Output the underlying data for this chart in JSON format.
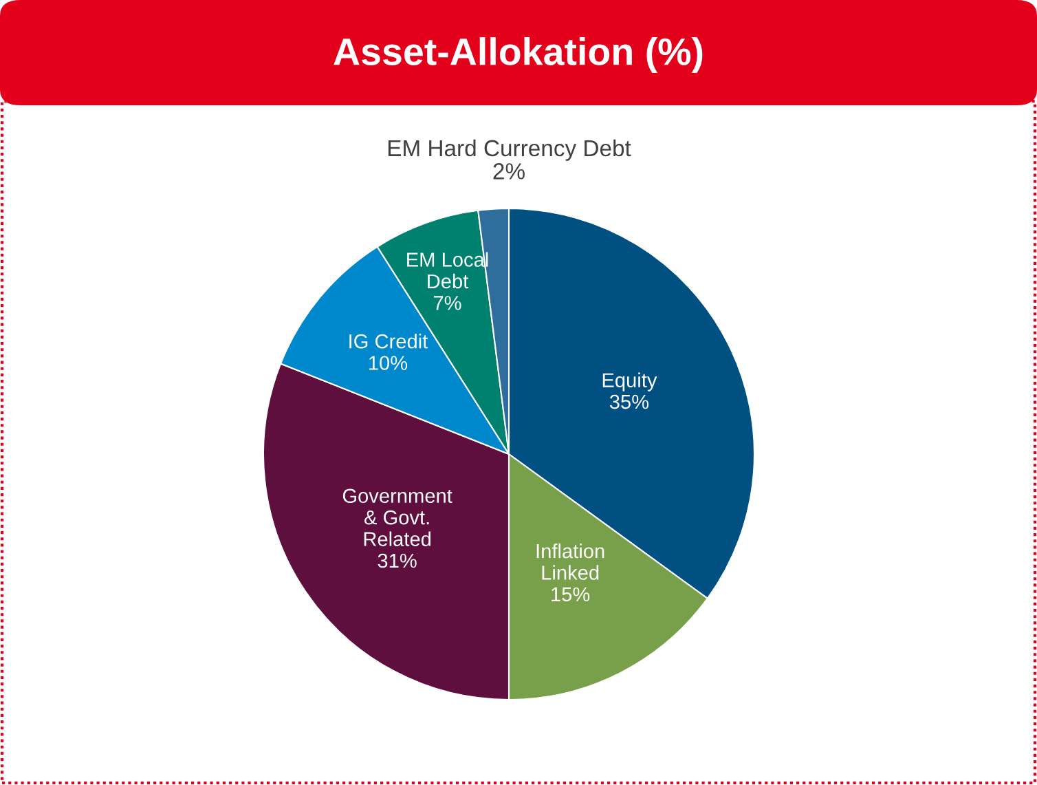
{
  "chart_data": {
    "type": "pie",
    "title": "Asset-Allokation (%)",
    "categories": [
      "Equity",
      "Inflation\nLinked",
      "Government\n& Govt.\nRelated",
      "IG Credit",
      "EM Local\nDebt",
      "EM Hard Currency Debt"
    ],
    "values": [
      35,
      15,
      31,
      10,
      7,
      2
    ],
    "colors": [
      "#005082",
      "#78a04a",
      "#5e0f3e",
      "#0088cc",
      "#00806f",
      "#2f6e9c"
    ],
    "value_labels": [
      "35%",
      "15%",
      "31%",
      "10%",
      "7%",
      "2%"
    ],
    "legend": false
  }
}
